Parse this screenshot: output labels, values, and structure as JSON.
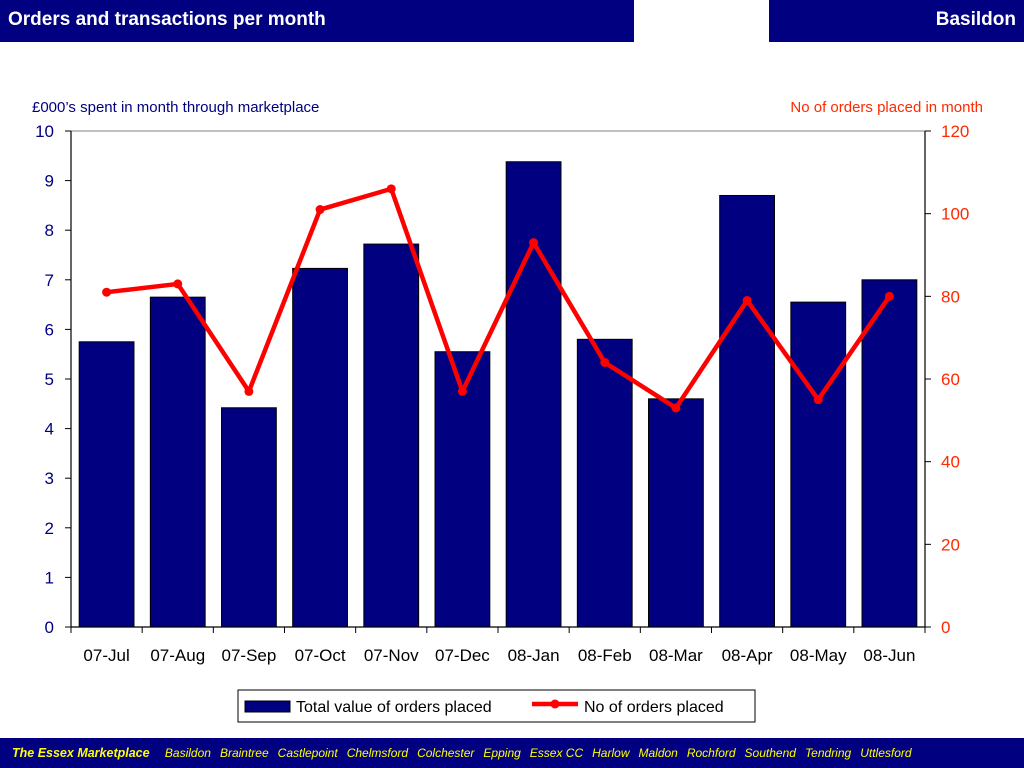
{
  "header": {
    "title": "Orders and transactions per month",
    "location": "Basildon"
  },
  "chart_data": {
    "type": "bar",
    "categories": [
      "07-Jul",
      "07-Aug",
      "07-Sep",
      "07-Oct",
      "07-Nov",
      "07-Dec",
      "08-Jan",
      "08-Feb",
      "08-Mar",
      "08-Apr",
      "08-May",
      "08-Jun"
    ],
    "series": [
      {
        "name": "Total value of orders placed",
        "type": "bar",
        "axis": "left",
        "color": "#000080",
        "values": [
          5.75,
          6.65,
          4.42,
          7.23,
          7.72,
          5.55,
          9.38,
          5.8,
          4.6,
          8.7,
          6.55,
          7.0
        ]
      },
      {
        "name": "No of orders placed",
        "type": "line",
        "axis": "right",
        "color": "#ff0000",
        "values": [
          81,
          83,
          57,
          101,
          106,
          57,
          93,
          64,
          53,
          79,
          55,
          80
        ]
      }
    ],
    "y_left_label": "£000’s spent in month through marketplace",
    "y_right_label": "No of orders placed in month",
    "y_left_range": [
      0,
      10
    ],
    "y_left_ticks": [
      "0",
      "1",
      "2",
      "3",
      "4",
      "5",
      "6",
      "7",
      "8",
      "9",
      "10"
    ],
    "y_right_range": [
      0,
      120
    ],
    "y_right_ticks": [
      "0",
      "20",
      "40",
      "60",
      "80",
      "100",
      "120"
    ],
    "grid": false,
    "legend_position": "bottom"
  },
  "footer": {
    "brand": "The Essex Marketplace",
    "towns": [
      "Basildon",
      "Braintree",
      "Castlepoint",
      "Chelmsford",
      "Colchester",
      "Epping",
      "Essex CC",
      "Harlow",
      "Maldon",
      "Rochford",
      "Southend",
      "Tendring",
      "Uttlesford"
    ]
  }
}
